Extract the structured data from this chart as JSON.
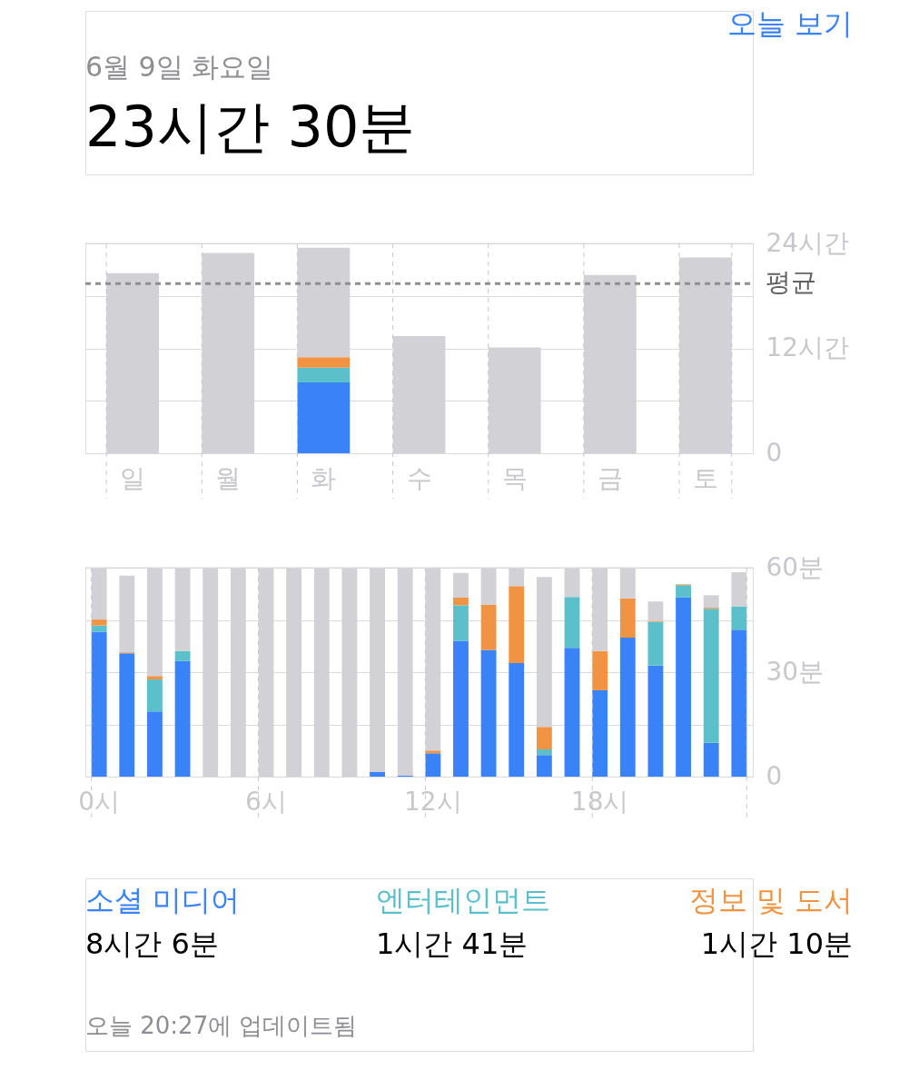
{
  "chart_data": [
    {
      "type": "bar",
      "title": "23시간 30분",
      "subtitle": "6월 9일 화요일",
      "stacked": true,
      "categories": [
        "일",
        "월",
        "화",
        "수",
        "목",
        "금",
        "토"
      ],
      "series": [
        {
          "color": "#3a82f7",
          "values": [
            0,
            0,
            8.1,
            0,
            0,
            0,
            0
          ]
        },
        {
          "color": "#5bc0ca",
          "values": [
            0,
            0,
            1.7,
            0,
            0,
            0,
            0
          ]
        },
        {
          "color": "#f09444",
          "values": [
            0,
            0,
            1.2,
            0,
            0,
            0,
            0
          ]
        },
        {
          "color": "#d1d1d6",
          "values": [
            20.6,
            22.9,
            12.5,
            13.4,
            12.1,
            20.4,
            22.4
          ]
        }
      ],
      "ylim": [
        0,
        24
      ],
      "yticks": [
        0,
        {
          "value": 6,
          "label": null
        },
        {
          "value": 12,
          "label": "12시간"
        },
        {
          "value": 18,
          "label": null
        },
        {
          "value": 24,
          "label": "24시간"
        }
      ],
      "grid": true,
      "ref_lines": [
        {
          "axis": "y",
          "value": 19.4,
          "label": "평균",
          "color": "#8e8e93",
          "line_style": "dashed"
        }
      ],
      "annotations": [
        "오늘 보기"
      ]
    },
    {
      "type": "bar",
      "stacked": true,
      "categories": [
        "0시",
        null,
        null,
        null,
        null,
        null,
        "6시",
        null,
        null,
        null,
        null,
        null,
        "12시",
        null,
        null,
        null,
        null,
        null,
        "18시",
        null,
        null,
        null,
        null,
        null
      ],
      "series": [
        {
          "name": "소셜 미디어",
          "color": "#3a82f7",
          "values": [
            41.6,
            35.4,
            18.7,
            33.2,
            0,
            0,
            0,
            0,
            0,
            0,
            1.4,
            0.3,
            6.7,
            39.0,
            36.4,
            32.6,
            6.2,
            37.0,
            24.8,
            39.9,
            31.9,
            51.5,
            9.7,
            42.2
          ]
        },
        {
          "name": "엔터테인먼트",
          "color": "#5bc0ca",
          "values": [
            1.8,
            0,
            9.2,
            2.9,
            0,
            0,
            0,
            0,
            0,
            0,
            0,
            0,
            0,
            10.2,
            0,
            0,
            1.6,
            14.6,
            0,
            0,
            12.5,
            3.5,
            38.5,
            6.7
          ]
        },
        {
          "name": "정보 및 도서",
          "color": "#f09444",
          "values": [
            1.7,
            0.3,
            1.0,
            0,
            0,
            0,
            0,
            0,
            0,
            0,
            0,
            0,
            0.8,
            2.2,
            12.9,
            22.1,
            6.5,
            null,
            11.3,
            11.3,
            0.2,
            0.2,
            0.3,
            0
          ]
        },
        {
          "color": "#d1d1d6",
          "values": [
            14.9,
            22.0,
            31.1,
            23.9,
            60,
            60,
            60,
            60,
            60,
            60,
            58.6,
            59.7,
            52.5,
            7.1,
            10.7,
            5.3,
            43.0,
            8.2,
            23.9,
            8.8,
            5.7,
            0,
            3.6,
            9.8
          ]
        }
      ],
      "ylim": [
        0,
        60
      ],
      "yticks": [
        0,
        {
          "value": 15,
          "label": null
        },
        {
          "value": 30,
          "label": "30분"
        },
        {
          "value": 45,
          "label": null
        },
        {
          "value": 60,
          "label": "60분"
        }
      ],
      "grid": true,
      "legend": "bottom",
      "annotations": [
        "8시간 6분",
        "1시간 41분",
        "1시간 10분",
        "오늘 20:27에 업데이트됨"
      ]
    }
  ]
}
